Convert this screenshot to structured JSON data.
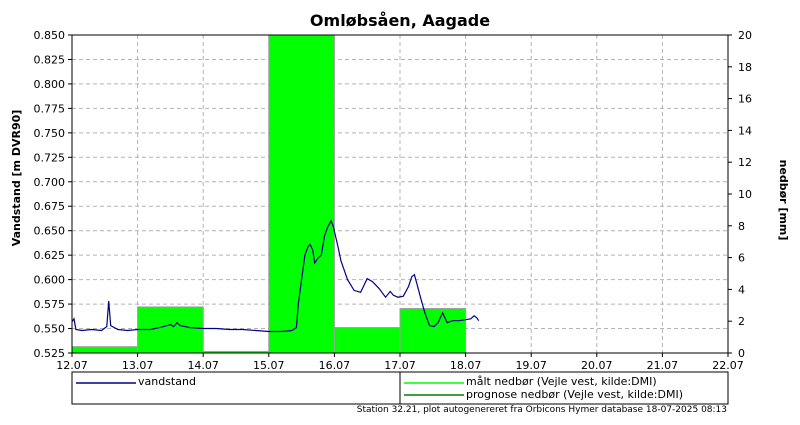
{
  "chart_data": {
    "type": "line",
    "title": "Omløbsåen, Aagade",
    "y_left_label": "Vandstand [m DVR90]",
    "y_right_label": "nedbør [mm]",
    "x_ticks": [
      "12.07",
      "13.07",
      "14.07",
      "15.07",
      "16.07",
      "17.07",
      "18.07",
      "19.07",
      "20.07",
      "21.07",
      "22.07"
    ],
    "x_range_days": [
      12,
      22
    ],
    "y_left_ticks": [
      "0.525",
      "0.550",
      "0.575",
      "0.600",
      "0.625",
      "0.650",
      "0.675",
      "0.700",
      "0.725",
      "0.750",
      "0.775",
      "0.800",
      "0.825",
      "0.850"
    ],
    "y_left_range": [
      0.525,
      0.85
    ],
    "y_right_ticks": [
      "0",
      "2",
      "4",
      "6",
      "8",
      "10",
      "12",
      "14",
      "16",
      "18",
      "20"
    ],
    "y_right_range": [
      0,
      20
    ],
    "grid": true,
    "bars": {
      "name": "målt nedbør (Vejle vest, kilde:DMI)",
      "color": "#00ff00",
      "data": [
        {
          "start": "12.07",
          "end": "13.07",
          "value": 0.4
        },
        {
          "start": "13.07",
          "end": "14.07",
          "value": 2.9
        },
        {
          "start": "14.07",
          "end": "15.07",
          "value": 0.1
        },
        {
          "start": "15.07",
          "end": "16.07",
          "value": 20.0
        },
        {
          "start": "16.07",
          "end": "17.07",
          "value": 1.6
        },
        {
          "start": "17.07",
          "end": "18.07",
          "value": 2.8
        }
      ]
    },
    "series": [
      {
        "name": "vandstand",
        "color": "#00008b",
        "points": [
          [
            12.0,
            0.557
          ],
          [
            12.03,
            0.56
          ],
          [
            12.06,
            0.549
          ],
          [
            12.15,
            0.548
          ],
          [
            12.3,
            0.549
          ],
          [
            12.45,
            0.548
          ],
          [
            12.53,
            0.552
          ],
          [
            12.56,
            0.578
          ],
          [
            12.59,
            0.553
          ],
          [
            12.7,
            0.549
          ],
          [
            12.85,
            0.548
          ],
          [
            13.0,
            0.549
          ],
          [
            13.2,
            0.549
          ],
          [
            13.4,
            0.552
          ],
          [
            13.5,
            0.554
          ],
          [
            13.55,
            0.552
          ],
          [
            13.6,
            0.556
          ],
          [
            13.65,
            0.553
          ],
          [
            13.8,
            0.551
          ],
          [
            14.0,
            0.55
          ],
          [
            14.2,
            0.55
          ],
          [
            14.4,
            0.549
          ],
          [
            14.6,
            0.549
          ],
          [
            14.8,
            0.548
          ],
          [
            15.0,
            0.547
          ],
          [
            15.2,
            0.547
          ],
          [
            15.35,
            0.548
          ],
          [
            15.42,
            0.551
          ],
          [
            15.45,
            0.575
          ],
          [
            15.5,
            0.6
          ],
          [
            15.55,
            0.625
          ],
          [
            15.6,
            0.634
          ],
          [
            15.63,
            0.636
          ],
          [
            15.67,
            0.63
          ],
          [
            15.7,
            0.617
          ],
          [
            15.75,
            0.622
          ],
          [
            15.8,
            0.625
          ],
          [
            15.85,
            0.645
          ],
          [
            15.9,
            0.654
          ],
          [
            15.95,
            0.66
          ],
          [
            15.98,
            0.655
          ],
          [
            16.05,
            0.635
          ],
          [
            16.1,
            0.619
          ],
          [
            16.2,
            0.6
          ],
          [
            16.3,
            0.589
          ],
          [
            16.4,
            0.587
          ],
          [
            16.45,
            0.594
          ],
          [
            16.5,
            0.601
          ],
          [
            16.58,
            0.598
          ],
          [
            16.68,
            0.591
          ],
          [
            16.78,
            0.582
          ],
          [
            16.85,
            0.588
          ],
          [
            16.9,
            0.584
          ],
          [
            16.97,
            0.582
          ],
          [
            17.05,
            0.583
          ],
          [
            17.13,
            0.593
          ],
          [
            17.18,
            0.603
          ],
          [
            17.22,
            0.605
          ],
          [
            17.26,
            0.595
          ],
          [
            17.32,
            0.58
          ],
          [
            17.38,
            0.566
          ],
          [
            17.45,
            0.553
          ],
          [
            17.52,
            0.552
          ],
          [
            17.58,
            0.556
          ],
          [
            17.65,
            0.566
          ],
          [
            17.72,
            0.556
          ],
          [
            17.8,
            0.558
          ],
          [
            17.9,
            0.558
          ],
          [
            18.0,
            0.559
          ],
          [
            18.08,
            0.56
          ],
          [
            18.13,
            0.563
          ],
          [
            18.17,
            0.561
          ],
          [
            18.2,
            0.558
          ]
        ]
      }
    ],
    "legend": [
      {
        "label": "vandstand",
        "color": "#00008b"
      },
      {
        "label": "målt nedbør (Vejle vest, kilde:DMI)",
        "color": "#00ff00"
      },
      {
        "label": "prognose nedbør (Vejle vest, kilde:DMI)",
        "color": "#008000"
      }
    ],
    "legend_position": "bottom",
    "footer": "Station 32.21, plot autogenereret fra Orbicons Hymer database 18-07-2025 08:13"
  }
}
